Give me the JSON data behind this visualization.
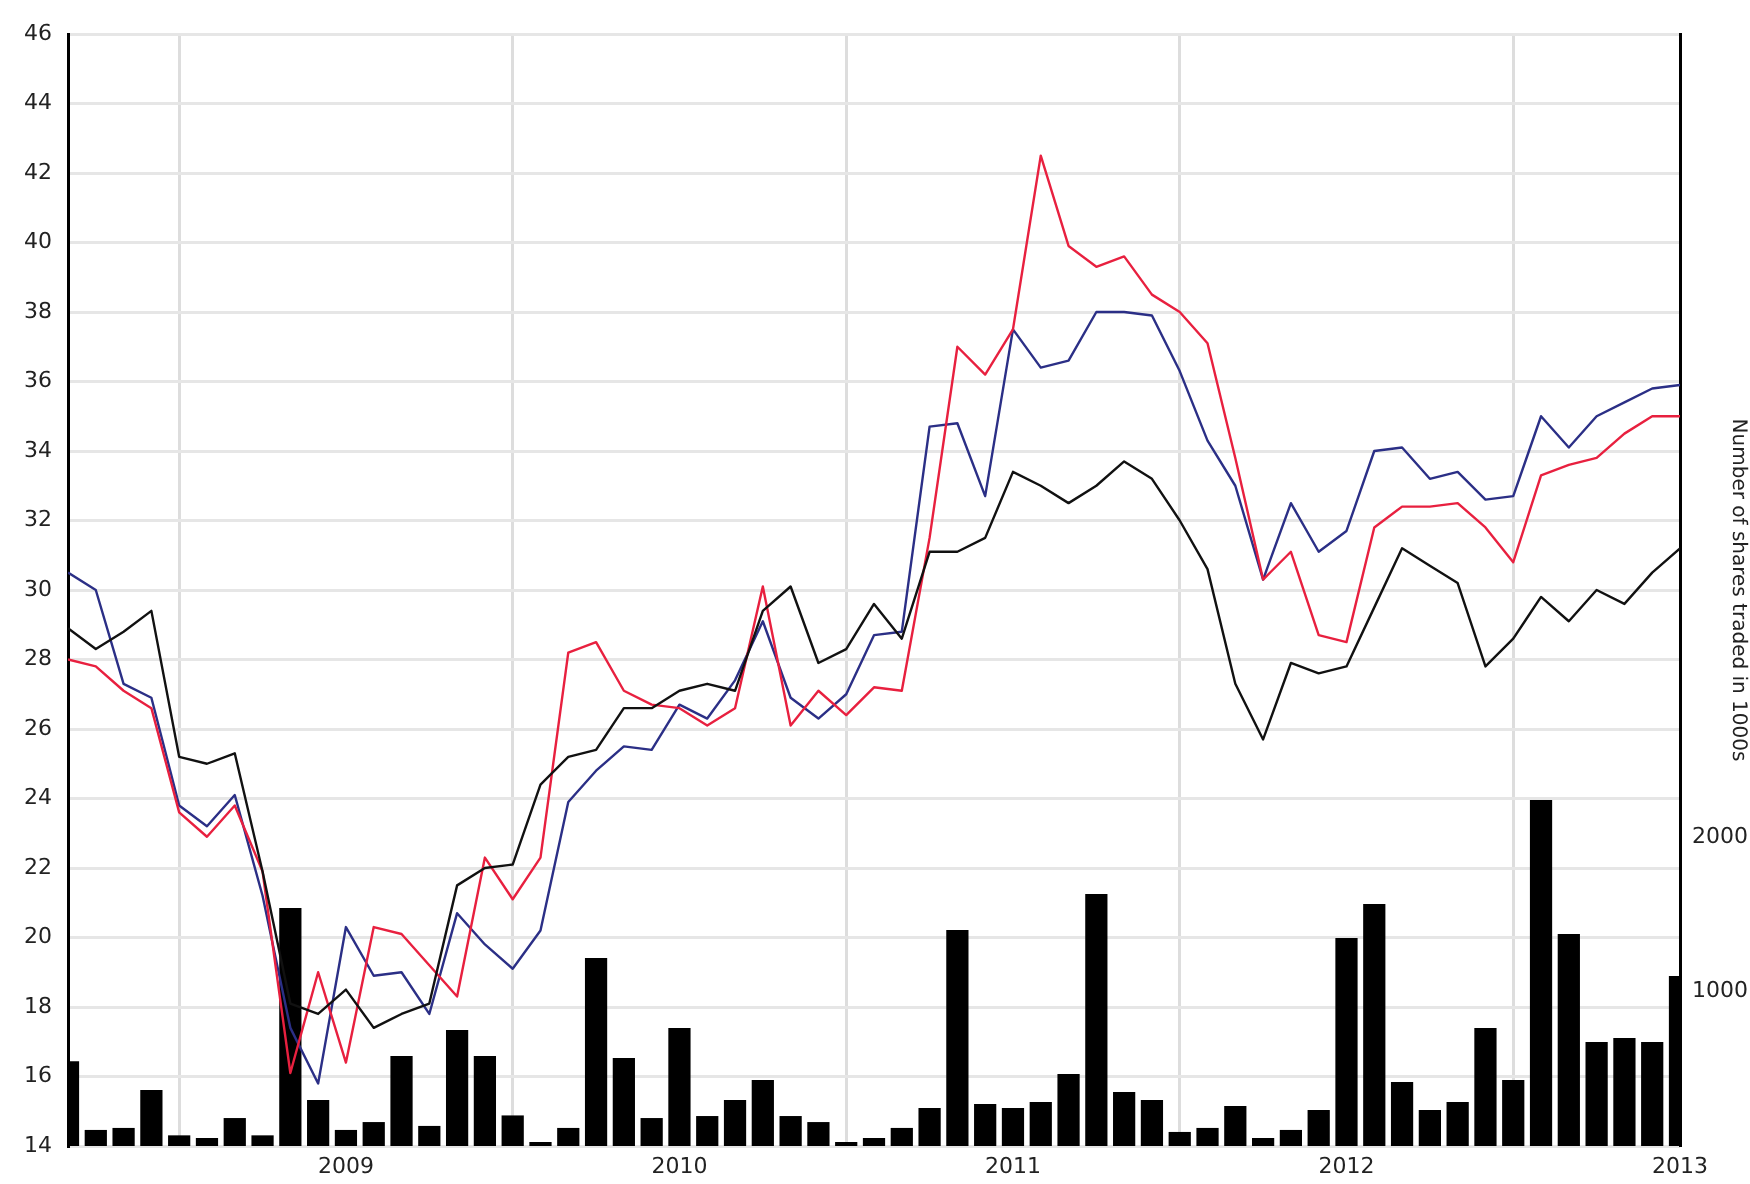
{
  "chart_data": {
    "type": "line",
    "x": [
      "2008-03",
      "2008-04",
      "2008-05",
      "2008-06",
      "2008-07",
      "2008-08",
      "2008-09",
      "2008-10",
      "2008-11",
      "2008-12",
      "2009-01",
      "2009-02",
      "2009-03",
      "2009-04",
      "2009-05",
      "2009-06",
      "2009-07",
      "2009-08",
      "2009-09",
      "2009-10",
      "2009-11",
      "2009-12",
      "2010-01",
      "2010-02",
      "2010-03",
      "2010-04",
      "2010-05",
      "2010-06",
      "2010-07",
      "2010-08",
      "2010-09",
      "2010-10",
      "2010-11",
      "2010-12",
      "2011-01",
      "2011-02",
      "2011-03",
      "2011-04",
      "2011-05",
      "2011-06",
      "2011-07",
      "2011-08",
      "2011-09",
      "2011-10",
      "2011-11",
      "2011-12",
      "2012-01",
      "2012-02",
      "2012-03",
      "2012-04",
      "2012-05",
      "2012-06",
      "2012-07",
      "2012-08",
      "2012-09",
      "2012-10",
      "2012-11",
      "2012-12",
      "2013-01"
    ],
    "series": [
      {
        "type": "bar",
        "axis": "y2",
        "color": "#000000",
        "values": [
          548,
          104,
          117,
          363,
          69,
          52,
          181,
          69,
          1541,
          298,
          104,
          155,
          583,
          130,
          751,
          583,
          198,
          26,
          117,
          1218,
          570,
          181,
          764,
          194,
          298,
          427,
          194,
          155,
          26,
          52,
          117,
          246,
          1399,
          272,
          246,
          285,
          466,
          1632,
          350,
          298,
          91,
          117,
          259,
          52,
          104,
          233,
          1347,
          1567,
          414,
          233,
          285,
          764,
          427,
          2241,
          1373,
          674,
          700,
          674,
          1101
        ]
      },
      {
        "color": "#111111",
        "values": [
          28.9,
          28.3,
          28.8,
          29.4,
          25.2,
          25.0,
          25.3,
          21.9,
          18.1,
          17.8,
          18.5,
          17.4,
          17.8,
          18.1,
          21.5,
          22.0,
          22.1,
          24.4,
          25.2,
          25.4,
          26.6,
          26.6,
          27.1,
          27.3,
          27.1,
          29.4,
          30.1,
          27.9,
          28.3,
          29.6,
          28.6,
          31.1,
          31.1,
          31.5,
          33.4,
          33.0,
          32.5,
          33.0,
          33.7,
          33.2,
          32.0,
          30.6,
          27.3,
          25.7,
          27.9,
          27.6,
          27.8,
          29.5,
          31.2,
          30.7,
          30.2,
          27.8,
          28.6,
          29.8,
          29.1,
          30.0,
          29.6,
          30.5,
          31.2
        ]
      },
      {
        "color": "#e8203f",
        "values": [
          28.0,
          27.8,
          27.1,
          26.6,
          23.6,
          22.9,
          23.8,
          21.9,
          16.1,
          19.0,
          16.4,
          20.3,
          20.1,
          19.2,
          18.3,
          22.3,
          21.1,
          22.3,
          28.2,
          28.5,
          27.1,
          26.7,
          26.6,
          26.1,
          26.6,
          30.1,
          26.1,
          27.1,
          26.4,
          27.2,
          27.1,
          31.5,
          37.0,
          36.2,
          37.5,
          42.5,
          39.9,
          39.3,
          39.6,
          38.5,
          38.0,
          37.1,
          33.8,
          30.3,
          31.1,
          28.7,
          28.5,
          31.8,
          32.4,
          32.4,
          32.5,
          31.8,
          30.8,
          33.3,
          33.6,
          33.8,
          34.5,
          35.0,
          35.0
        ]
      },
      {
        "color": "#2b2f86",
        "values": [
          30.5,
          30.0,
          27.3,
          26.9,
          23.8,
          23.2,
          24.1,
          21.2,
          17.4,
          15.8,
          20.3,
          18.9,
          19.0,
          17.8,
          20.7,
          19.8,
          19.1,
          20.2,
          23.9,
          24.8,
          25.5,
          25.4,
          26.7,
          26.3,
          27.4,
          29.1,
          26.9,
          26.3,
          27.0,
          28.7,
          28.8,
          34.7,
          34.8,
          32.7,
          37.5,
          36.4,
          36.6,
          38.0,
          38.0,
          37.9,
          36.3,
          34.3,
          33.0,
          30.3,
          32.5,
          31.1,
          31.7,
          34.0,
          34.1,
          33.2,
          33.4,
          32.6,
          32.7,
          35.0,
          34.1,
          35.0,
          35.4,
          35.8,
          35.9
        ]
      }
    ],
    "xlim": [
      "2008-03",
      "2013-01"
    ],
    "xticks": [
      "2009",
      "2010",
      "2011",
      "2012",
      "2013"
    ],
    "ylim": [
      14,
      46
    ],
    "yticks": [
      14,
      16,
      18,
      20,
      22,
      24,
      26,
      28,
      30,
      32,
      34,
      36,
      38,
      40,
      42,
      44,
      46
    ],
    "y2lim": [
      0,
      7200
    ],
    "y2ticks": [
      1000,
      2000
    ],
    "y2label": "Number of shares traded in 1000s",
    "grid": true,
    "legend": false,
    "marker": "none",
    "line_style": "solid"
  }
}
